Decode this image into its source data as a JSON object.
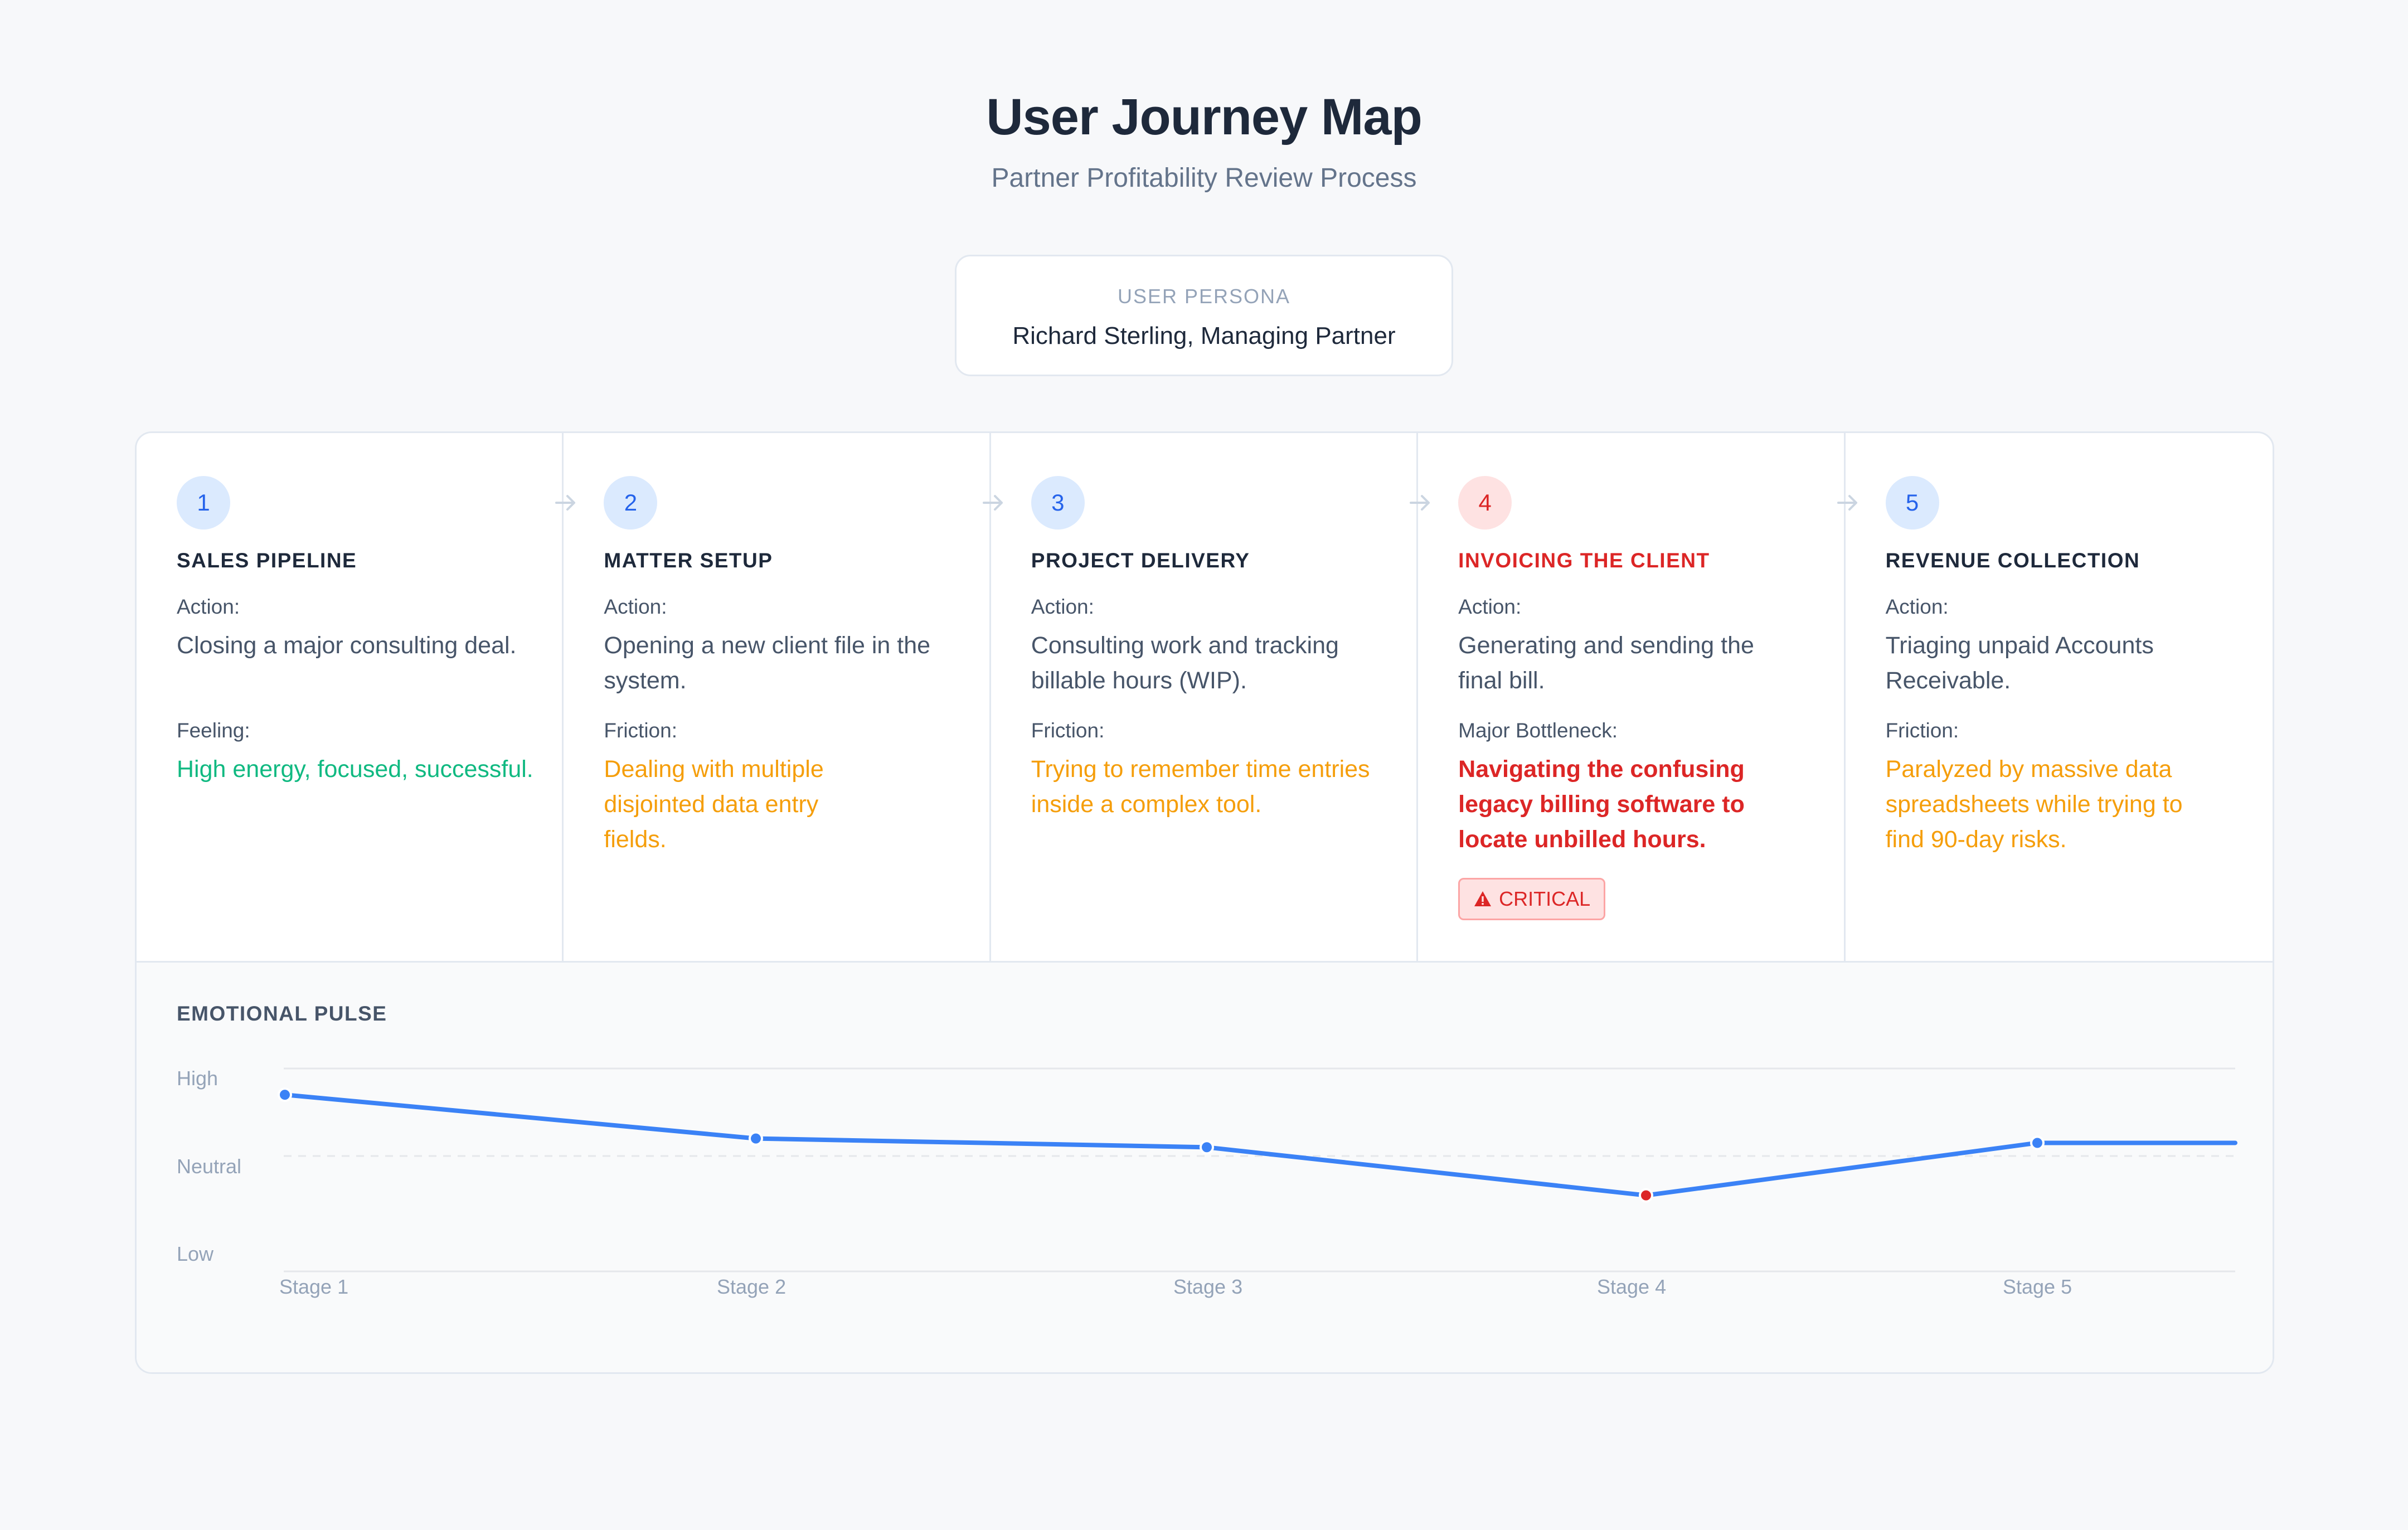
{
  "header": {
    "title": "User Journey Map",
    "subtitle": "Partner Profitability Review Process"
  },
  "persona": {
    "label": "USER PERSONA",
    "name": "Richard Sterling, Managing Partner"
  },
  "colors": {
    "accent": "#3b82f6",
    "positive": "#10b981",
    "warning": "#f59e0b",
    "critical": "#dc2626"
  },
  "stages": [
    {
      "number": "1",
      "title": "SALES PIPELINE",
      "action_label": "Action:",
      "action": "Closing a major consulting deal.",
      "second_label": "Feeling:",
      "second_text": "High energy, focused, successful.",
      "tone": "green",
      "critical": false
    },
    {
      "number": "2",
      "title": "MATTER SETUP",
      "action_label": "Action:",
      "action": "Opening a new client file in the system.",
      "second_label": "Friction:",
      "second_text": "Dealing with multiple disjointed data entry fields.",
      "tone": "orange",
      "critical": false
    },
    {
      "number": "3",
      "title": "PROJECT DELIVERY",
      "action_label": "Action:",
      "action": "Consulting work and tracking billable hours (WIP).",
      "second_label": "Friction:",
      "second_text": "Trying to remember time entries inside a complex tool.",
      "tone": "orange",
      "critical": false
    },
    {
      "number": "4",
      "title": "INVOICING THE CLIENT",
      "action_label": "Action:",
      "action": "Generating and sending the final bill.",
      "second_label": "Major Bottleneck:",
      "second_text": "Navigating the confusing legacy billing software to locate unbilled hours.",
      "tone": "red",
      "critical": true,
      "tag": "CRITICAL",
      "tag_icon": "warning-icon"
    },
    {
      "number": "5",
      "title": "REVENUE COLLECTION",
      "action_label": "Action:",
      "action": "Triaging unpaid Accounts Receivable.",
      "second_label": "Friction:",
      "second_text": "Paralyzed by massive data spreadsheets while trying to find 90-day risks.",
      "tone": "orange",
      "critical": false
    }
  ],
  "pulse": {
    "title": "EMOTIONAL PULSE"
  },
  "chart_data": {
    "type": "line",
    "y_levels": [
      "High",
      "Neutral",
      "Low"
    ],
    "ylim": [
      -1,
      1
    ],
    "categories": [
      "Stage 1",
      "Stage 2",
      "Stage 3",
      "Stage 4",
      "Stage 5"
    ],
    "series": [
      {
        "values": [
          0.7,
          0.2,
          0.1,
          -0.45,
          0.15
        ]
      }
    ],
    "highlight": {
      "index": 3,
      "color": "#dc2626"
    },
    "grid": "horizontal",
    "neutral_line": "dashed"
  }
}
